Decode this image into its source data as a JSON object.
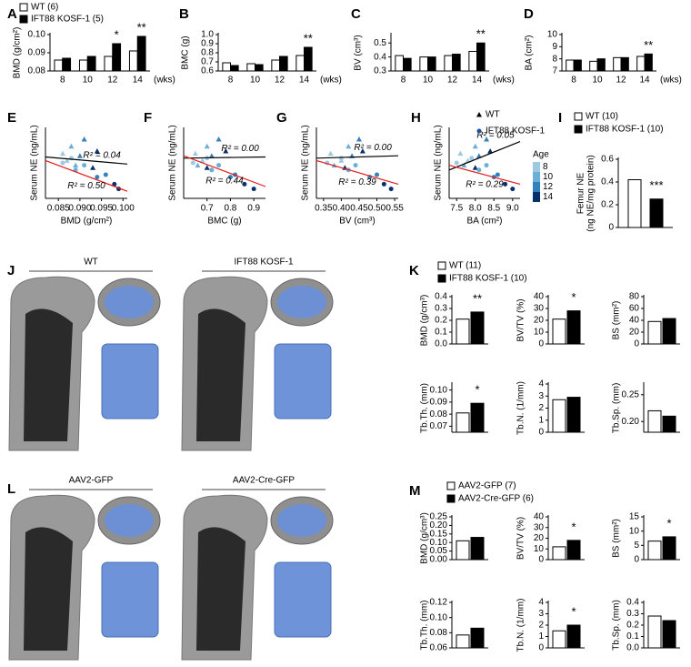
{
  "chart_data": [
    {
      "type": "groupbar",
      "label": "A",
      "ylabel": "BMD (g/cm²)",
      "categories": [
        "8",
        "10",
        "12",
        "14"
      ],
      "xunit": "(wks)",
      "series": [
        {
          "name": "WT (6)",
          "color": "#ffffff",
          "values": [
            0.086,
            0.086,
            0.088,
            0.091
          ]
        },
        {
          "name": "IFT88 KOSF-1 (5)",
          "color": "#000000",
          "values": [
            0.087,
            0.088,
            0.095,
            0.099
          ]
        }
      ],
      "significance": [
        null,
        null,
        "*",
        "**"
      ],
      "ylim": [
        0.08,
        0.1
      ],
      "yticks": [
        0.08,
        0.09,
        {
          "value": 0.1,
          "label": "0.10"
        }
      ]
    },
    {
      "type": "groupbar",
      "label": "B",
      "ylabel": "BMC (g)",
      "categories": [
        "8",
        "10",
        "12",
        "14"
      ],
      "xunit": "(wks)",
      "series": [
        {
          "color": "#ffffff",
          "values": [
            0.69,
            0.68,
            0.72,
            0.77
          ]
        },
        {
          "color": "#000000",
          "values": [
            0.66,
            0.67,
            0.76,
            0.86
          ]
        }
      ],
      "significance": [
        null,
        null,
        null,
        "**"
      ],
      "ylim": [
        0.6,
        1.0
      ],
      "yticks": [
        0.6,
        0.7,
        0.8,
        0.9,
        {
          "value": 1.0,
          "label": "1.0"
        }
      ]
    },
    {
      "type": "groupbar",
      "label": "C",
      "ylabel": "BV (cm³)",
      "categories": [
        "8",
        "10",
        "12",
        "14"
      ],
      "xunit": "(wks)",
      "series": [
        {
          "color": "#ffffff",
          "values": [
            0.41,
            0.4,
            0.41,
            0.44
          ]
        },
        {
          "color": "#000000",
          "values": [
            0.39,
            0.4,
            0.42,
            0.5
          ]
        }
      ],
      "significance": [
        null,
        null,
        null,
        "**"
      ],
      "ylim": [
        0.3,
        0.56
      ],
      "yticks": [
        0.3,
        0.4,
        0.5
      ]
    },
    {
      "type": "groupbar",
      "label": "D",
      "ylabel": "BA (cm²)",
      "categories": [
        "8",
        "10",
        "12",
        "14"
      ],
      "xunit": "(wks)",
      "series": [
        {
          "color": "#ffffff",
          "values": [
            7.9,
            7.8,
            8.1,
            8.2
          ]
        },
        {
          "color": "#000000",
          "values": [
            7.9,
            8.0,
            8.1,
            8.4
          ]
        }
      ],
      "significance": [
        null,
        null,
        null,
        "**"
      ],
      "ylim": [
        7,
        10
      ],
      "yticks": [
        7,
        8,
        9,
        10
      ]
    },
    {
      "type": "scatter",
      "label": "E",
      "ylabel": "Serum NE (ng/mL)",
      "xlabel": "BMD (g/cm²)",
      "xlim": [
        0.082,
        0.101
      ],
      "ylim": [
        0,
        3
      ],
      "xticks": [
        0.085,
        {
          "value": 0.09,
          "label": "0.090"
        },
        0.095,
        {
          "value": 0.1,
          "label": "0.100"
        }
      ],
      "series": [
        {
          "marker": "triangle",
          "x": [
            0.086,
            0.087,
            0.088,
            0.089,
            0.09,
            0.091,
            0.093,
            0.094
          ],
          "y": [
            1.9,
            1.6,
            2.2,
            1.4,
            1.8,
            2.5,
            1.3,
            2.0
          ],
          "age": [
            8,
            8,
            10,
            10,
            12,
            12,
            14,
            14
          ]
        },
        {
          "marker": "circle",
          "x": [
            0.086,
            0.088,
            0.089,
            0.091,
            0.094,
            0.096,
            0.098,
            0.099
          ],
          "y": [
            1.5,
            1.7,
            1.2,
            1.4,
            0.9,
            1.0,
            0.6,
            0.4
          ],
          "age": [
            8,
            8,
            10,
            10,
            12,
            12,
            14,
            14
          ]
        }
      ],
      "fits": [
        {
          "color": "#000000",
          "x": [
            0.082,
            0.101
          ],
          "y": [
            1.75,
            1.45
          ],
          "label": "R² = 0.04"
        },
        {
          "color": "#e41a1c",
          "x": [
            0.082,
            0.101
          ],
          "y": [
            1.6,
            0.3
          ],
          "label": "R² = 0.50"
        }
      ]
    },
    {
      "type": "scatter",
      "label": "F",
      "ylabel": "Serum NE (ng/mL)",
      "xlabel": "BMC (g)",
      "xlim": [
        0.6,
        0.95
      ],
      "ylim": [
        0,
        3
      ],
      "xticks": [
        0.7,
        0.8,
        0.9
      ],
      "series": [
        {
          "marker": "triangle",
          "x": [
            0.65,
            0.68,
            0.7,
            0.66,
            0.72,
            0.75,
            0.7,
            0.78
          ],
          "y": [
            1.9,
            1.6,
            2.2,
            1.4,
            1.8,
            2.5,
            1.3,
            2.0
          ],
          "age": [
            8,
            8,
            10,
            10,
            12,
            12,
            14,
            14
          ]
        },
        {
          "marker": "circle",
          "x": [
            0.64,
            0.7,
            0.72,
            0.75,
            0.8,
            0.82,
            0.86,
            0.9
          ],
          "y": [
            1.5,
            1.7,
            1.2,
            1.4,
            0.9,
            1.0,
            0.6,
            0.4
          ],
          "age": [
            8,
            8,
            10,
            10,
            12,
            12,
            14,
            14
          ]
        }
      ],
      "fits": [
        {
          "color": "#000000",
          "x": [
            0.6,
            0.95
          ],
          "y": [
            1.7,
            1.75
          ],
          "label": "R² = 0.00"
        },
        {
          "color": "#e41a1c",
          "x": [
            0.6,
            0.95
          ],
          "y": [
            1.8,
            0.5
          ],
          "label": "R² = 0.44"
        }
      ]
    },
    {
      "type": "scatter",
      "label": "G",
      "ylabel": "Serum NE (ng/mL)",
      "xlabel": "BV (cm³)",
      "xlim": [
        0.33,
        0.56
      ],
      "ylim": [
        0,
        3
      ],
      "xticks": [
        0.35,
        {
          "value": 0.4,
          "label": "0.40"
        },
        0.45,
        {
          "value": 0.5,
          "label": "0.50"
        },
        0.55
      ],
      "series": [
        {
          "marker": "triangle",
          "x": [
            0.37,
            0.4,
            0.42,
            0.38,
            0.43,
            0.45,
            0.41,
            0.46
          ],
          "y": [
            1.9,
            1.6,
            2.2,
            1.4,
            1.8,
            2.5,
            1.3,
            2.0
          ],
          "age": [
            8,
            8,
            10,
            10,
            12,
            12,
            14,
            14
          ]
        },
        {
          "marker": "circle",
          "x": [
            0.36,
            0.4,
            0.42,
            0.44,
            0.48,
            0.5,
            0.52,
            0.54
          ],
          "y": [
            1.5,
            1.7,
            1.2,
            1.4,
            0.9,
            1.0,
            0.6,
            0.4
          ],
          "age": [
            8,
            8,
            10,
            10,
            12,
            12,
            14,
            14
          ]
        }
      ],
      "fits": [
        {
          "color": "#000000",
          "x": [
            0.33,
            0.56
          ],
          "y": [
            1.7,
            1.8
          ],
          "label": "R² = 0.00"
        },
        {
          "color": "#e41a1c",
          "x": [
            0.33,
            0.56
          ],
          "y": [
            1.6,
            0.6
          ],
          "label": "R² = 0.39"
        }
      ]
    },
    {
      "type": "scatter",
      "label": "H",
      "ylabel": "Serum NE (ng/mL)",
      "xlabel": "BA (cm²)",
      "xlim": [
        7.3,
        9.2
      ],
      "ylim": [
        0,
        3
      ],
      "xticks": [
        7.5,
        {
          "value": 8.0,
          "label": "8.0"
        },
        8.5,
        {
          "value": 9.0,
          "label": "9.0"
        }
      ],
      "series": [
        {
          "name": "WT",
          "marker": "triangle",
          "name_color": "#000000",
          "x": [
            7.6,
            7.8,
            8.0,
            7.7,
            8.1,
            8.3,
            8.0,
            8.4
          ],
          "y": [
            1.9,
            1.6,
            2.2,
            1.4,
            1.8,
            2.5,
            1.3,
            2.0
          ],
          "age": [
            8,
            8,
            10,
            10,
            12,
            12,
            14,
            14
          ]
        },
        {
          "name": "IFT88 KOSF-1",
          "marker": "circle",
          "name_color": "#e41a1c",
          "x": [
            7.5,
            7.9,
            8.1,
            8.3,
            8.5,
            8.6,
            8.8,
            9.0
          ],
          "y": [
            1.5,
            1.7,
            1.2,
            1.4,
            0.9,
            1.0,
            0.6,
            0.4
          ],
          "age": [
            8,
            8,
            10,
            10,
            12,
            12,
            14,
            14
          ]
        }
      ],
      "fits": [
        {
          "color": "#000000",
          "x": [
            7.3,
            9.2
          ],
          "y": [
            1.2,
            2.4
          ],
          "label": "R² = 0.05"
        },
        {
          "color": "#e41a1c",
          "x": [
            7.3,
            9.2
          ],
          "y": [
            1.4,
            0.6
          ],
          "label": "R² = 0.29"
        }
      ],
      "colorbar": {
        "title": "Age",
        "ticks": [
          8,
          10,
          12,
          14
        ],
        "colors": [
          "#9ecae1",
          "#6baed6",
          "#3182bd",
          "#08306b"
        ]
      }
    },
    {
      "type": "legend",
      "label": "I",
      "series": [
        {
          "name": "WT (10)",
          "color": "#ffffff"
        },
        {
          "name": "IFT88 KOSF-1 (10)",
          "color": "#000000"
        }
      ]
    },
    {
      "type": "pairbar",
      "ylabel": [
        "Femur NE",
        "(ng NE/mg protein)"
      ],
      "values": [
        0.42,
        0.25
      ],
      "colors": [
        "#ffffff",
        "#000000"
      ],
      "significance": [
        null,
        "***"
      ],
      "ylim": [
        0,
        0.6
      ],
      "yticks": [
        0,
        0.2,
        0.4,
        0.6
      ]
    },
    {
      "type": "legend",
      "label": "K",
      "series": [
        {
          "name": "WT (11)",
          "color": "#ffffff"
        },
        {
          "name": "IFT88 KOSF-1 (10)",
          "color": "#000000"
        }
      ]
    },
    {
      "type": "pairbar",
      "ylabel": [
        "BMD (g/cm³)"
      ],
      "values": [
        0.21,
        0.27
      ],
      "colors": [
        "#ffffff",
        "#000000"
      ],
      "significance": [
        null,
        "**"
      ],
      "ylim": [
        0,
        0.4
      ],
      "yticks": [
        {
          "value": 0,
          "label": "0.0"
        },
        0.1,
        0.2,
        0.3,
        0.4
      ]
    },
    {
      "type": "pairbar",
      "ylabel": [
        "BV/TV (%)"
      ],
      "values": [
        21,
        28
      ],
      "colors": [
        "#ffffff",
        "#000000"
      ],
      "significance": [
        null,
        "*"
      ],
      "ylim": [
        0,
        40
      ],
      "yticks": [
        0,
        10,
        20,
        30,
        40
      ]
    },
    {
      "type": "pairbar",
      "ylabel": [
        "BS (mm²)"
      ],
      "values": [
        38,
        43
      ],
      "colors": [
        "#ffffff",
        "#000000"
      ],
      "significance": [
        null,
        null
      ],
      "ylim": [
        0,
        80
      ],
      "yticks": [
        0,
        20,
        40,
        60,
        80
      ]
    },
    {
      "type": "pairbar",
      "ylabel": [
        "Tb.Th. (mm)"
      ],
      "values": [
        0.081,
        0.089
      ],
      "colors": [
        "#ffffff",
        "#000000"
      ],
      "significance": [
        null,
        "*"
      ],
      "ylim": [
        0.065,
        0.105
      ],
      "yticks": [
        0.07,
        0.08,
        0.09,
        {
          "value": 0.1,
          "label": "0.10"
        }
      ]
    },
    {
      "type": "pairbar",
      "ylabel": [
        "Tb.N. (1/mm)"
      ],
      "values": [
        2.7,
        2.9
      ],
      "colors": [
        "#ffffff",
        "#000000"
      ],
      "significance": [
        null,
        null
      ],
      "ylim": [
        0,
        4
      ],
      "yticks": [
        0,
        1,
        2,
        3,
        4
      ]
    },
    {
      "type": "pairbar",
      "ylabel": [
        "Tb.Sp. (mm)"
      ],
      "values": [
        0.22,
        0.21
      ],
      "colors": [
        "#ffffff",
        "#000000"
      ],
      "significance": [
        null,
        null
      ],
      "ylim": [
        0.18,
        0.27
      ],
      "yticks": [
        {
          "value": 0.2,
          "label": "0.20"
        },
        0.25
      ]
    },
    {
      "type": "legend",
      "label": "M",
      "series": [
        {
          "name": "AAV2-GFP (7)",
          "color": "#ffffff"
        },
        {
          "name": "AAV2-Cre-GFP (6)",
          "color": "#000000"
        }
      ]
    },
    {
      "type": "pairbar",
      "ylabel": [
        "BMD (g/cm³)"
      ],
      "values": [
        0.11,
        0.13
      ],
      "colors": [
        "#ffffff",
        "#000000"
      ],
      "significance": [
        null,
        null
      ],
      "ylim": [
        0,
        0.25
      ],
      "yticks": [
        {
          "value": 0,
          "label": "0.00"
        },
        0.05,
        {
          "value": 0.1,
          "label": "0.10"
        },
        0.15,
        {
          "value": 0.2,
          "label": "0.20"
        },
        0.25
      ]
    },
    {
      "type": "pairbar",
      "ylabel": [
        "BV/TV (%)"
      ],
      "values": [
        12,
        18
      ],
      "colors": [
        "#ffffff",
        "#000000"
      ],
      "significance": [
        null,
        "*"
      ],
      "ylim": [
        0,
        40
      ],
      "yticks": [
        0,
        10,
        20,
        30,
        40
      ]
    },
    {
      "type": "pairbar",
      "ylabel": [
        "BS (mm²)"
      ],
      "values": [
        6.5,
        8
      ],
      "colors": [
        "#ffffff",
        "#000000"
      ],
      "significance": [
        null,
        "*"
      ],
      "ylim": [
        0,
        15
      ],
      "yticks": [
        0,
        5,
        10,
        15
      ]
    },
    {
      "type": "pairbar",
      "ylabel": [
        "Tb.Th. (mm)"
      ],
      "values": [
        0.077,
        0.086
      ],
      "colors": [
        "#ffffff",
        "#000000"
      ],
      "significance": [
        null,
        null
      ],
      "ylim": [
        0.06,
        0.12
      ],
      "yticks": [
        0.06,
        0.08,
        {
          "value": 0.1,
          "label": "0.10"
        },
        0.12
      ]
    },
    {
      "type": "pairbar",
      "ylabel": [
        "Tb.N. (1/mm)"
      ],
      "values": [
        1.5,
        2.0
      ],
      "colors": [
        "#ffffff",
        "#000000"
      ],
      "significance": [
        null,
        "*"
      ],
      "ylim": [
        0,
        4
      ],
      "yticks": [
        0,
        1,
        2,
        3,
        4
      ]
    },
    {
      "type": "pairbar",
      "ylabel": [
        "Tb.Sp. (mm)"
      ],
      "values": [
        0.28,
        0.24
      ],
      "colors": [
        "#ffffff",
        "#000000"
      ],
      "significance": [
        null,
        null
      ],
      "ylim": [
        0,
        0.4
      ],
      "yticks": [
        {
          "value": 0,
          "label": "0.0"
        },
        0.1,
        0.2,
        0.3,
        0.4
      ]
    }
  ],
  "images": [
    {
      "label": "J",
      "groups": [
        "WT",
        "IFT88 KOSF-1"
      ]
    },
    {
      "label": "L",
      "groups": [
        "AAV2-GFP",
        "AAV2-Cre-GFP"
      ]
    }
  ]
}
